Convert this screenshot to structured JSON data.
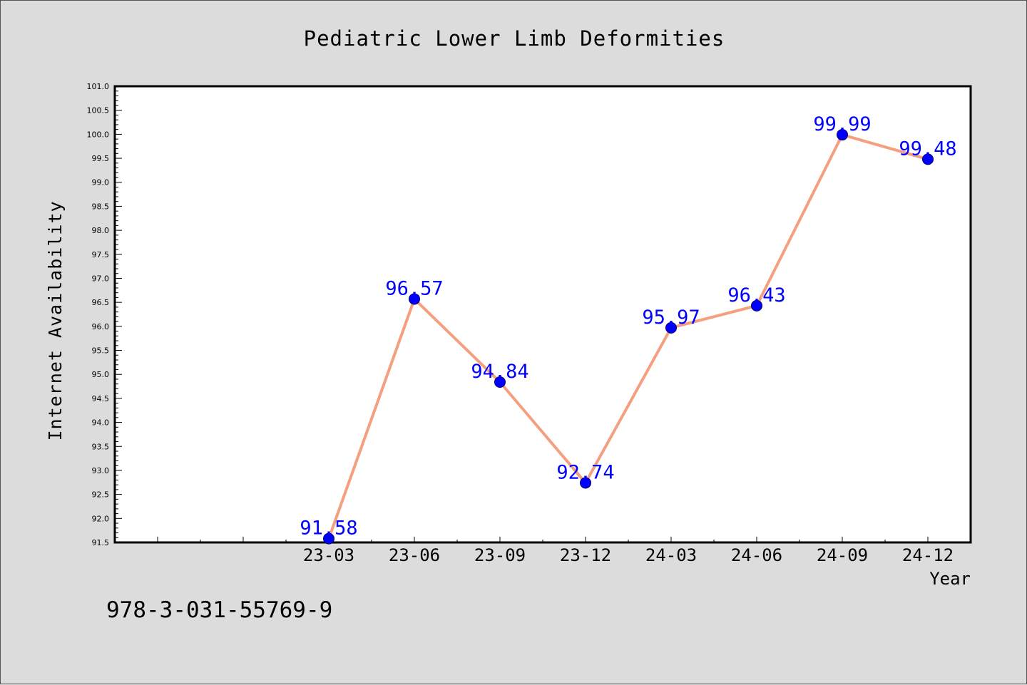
{
  "chart_data": {
    "type": "line",
    "title": "Pediatric Lower Limb Deformities",
    "xlabel": "Year",
    "ylabel": "Internet Availability",
    "x_ticks": [
      "",
      "",
      "23-03",
      "23-06",
      "23-09",
      "23-12",
      "24-03",
      "24-06",
      "24-09",
      "24-12"
    ],
    "categories": [
      "23-03",
      "23-06",
      "23-09",
      "23-12",
      "24-03",
      "24-06",
      "24-09",
      "24-12"
    ],
    "values": [
      91.58,
      96.57,
      94.84,
      92.74,
      95.97,
      96.43,
      99.99,
      99.48
    ],
    "data_labels": [
      "91.58",
      "96.57",
      "94.84",
      "92.74",
      "95.97",
      "96.43",
      "99.99",
      "99.48"
    ],
    "ylim": [
      91.5,
      101.0
    ],
    "y_ticks": [
      "91.5",
      "92.0",
      "92.5",
      "93.0",
      "93.5",
      "94.0",
      "94.5",
      "95.0",
      "95.5",
      "96.0",
      "96.5",
      "97.0",
      "97.5",
      "98.0",
      "98.5",
      "99.0",
      "99.5",
      "100.0",
      "100.5",
      "101.0"
    ],
    "grid": false,
    "line_color": "#f4a080",
    "marker_color": "#0000ff",
    "label_color": "#0000ff",
    "background_color": "#dcdcdc",
    "plot_background": "#ffffff"
  },
  "footer": {
    "isbn": "978-3-031-55769-9"
  }
}
